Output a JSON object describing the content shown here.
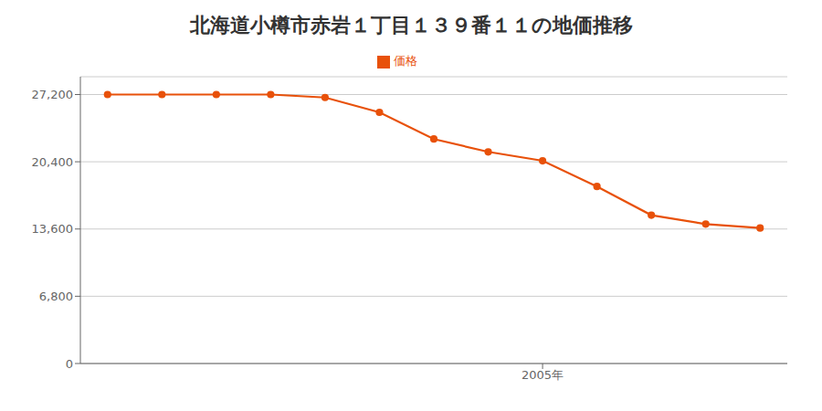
{
  "chart_data": {
    "type": "line",
    "title": "北海道小樽市赤岩１丁目１３９番１１の地価推移",
    "x": [
      1997,
      1998,
      1999,
      2000,
      2001,
      2002,
      2003,
      2004,
      2005,
      2006,
      2007,
      2008,
      2009
    ],
    "series": [
      {
        "name": "価格",
        "color": "#e8510a",
        "marker": "circle",
        "values": [
          27200,
          27200,
          27200,
          27200,
          26900,
          25400,
          22700,
          21400,
          20500,
          17900,
          15000,
          14100,
          13700
        ]
      }
    ],
    "xlim": [
      1996.5,
      2009.5
    ],
    "xticks": [
      {
        "value": 2005,
        "label": "2005年"
      }
    ],
    "ylim": [
      0,
      29000
    ],
    "yticks": [
      0,
      {
        "value": 6800,
        "label": "6,800"
      },
      {
        "value": 13600,
        "label": "13,600"
      },
      {
        "value": 20400,
        "label": "20,400"
      },
      {
        "value": 27200,
        "label": "27,200"
      }
    ],
    "grid": true,
    "legend": "top"
  }
}
